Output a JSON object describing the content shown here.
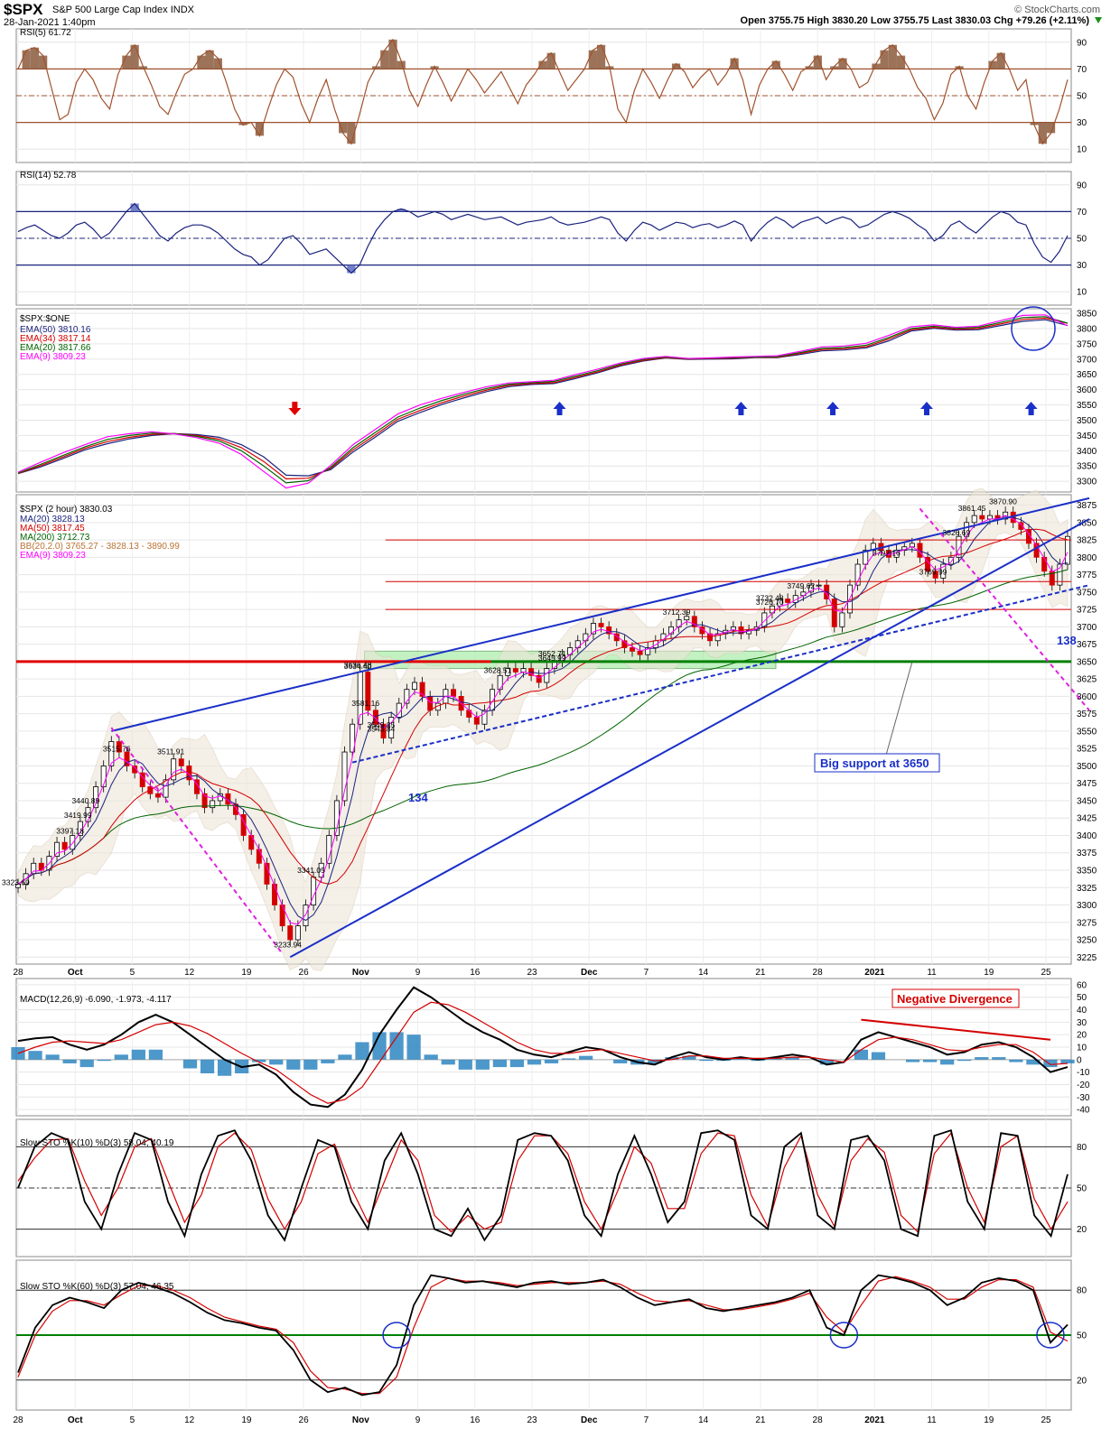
{
  "header": {
    "symbol": "$SPX",
    "name": "S&P 500 Large Cap Index",
    "exchange": "INDX",
    "date": "28-Jan-2021 1:40pm",
    "watermark": "© StockCharts.com",
    "quote": "Open 3755.75  High 3830.20  Low 3755.75  Last 3830.03  Chg +79.26 (+2.11%)"
  },
  "x_labels": [
    "28",
    "Oct",
    "5",
    "12",
    "19",
    "26",
    "Nov",
    "9",
    "16",
    "23",
    "Dec",
    "7",
    "14",
    "21",
    "28",
    "2021",
    "11",
    "19",
    "25"
  ],
  "chart_data": [
    {
      "id": "rsi5",
      "type": "line",
      "label": "RSI(5) 61.72",
      "ylim": [
        0,
        100
      ],
      "yticks": [
        10,
        30,
        50,
        70,
        90
      ],
      "levels": [
        30,
        50,
        70
      ],
      "colors": {
        "line": "#a0522d",
        "fill": "#8b5a3c"
      },
      "values": [
        70,
        84,
        86,
        80,
        56,
        32,
        36,
        60,
        70,
        62,
        48,
        40,
        66,
        80,
        88,
        72,
        58,
        42,
        36,
        52,
        66,
        70,
        80,
        84,
        78,
        60,
        40,
        28,
        30,
        20,
        40,
        58,
        70,
        64,
        44,
        30,
        48,
        62,
        40,
        22,
        14,
        36,
        60,
        72,
        84,
        92,
        76,
        54,
        42,
        58,
        72,
        60,
        46,
        58,
        70,
        62,
        52,
        60,
        68,
        56,
        44,
        58,
        66,
        76,
        82,
        68,
        54,
        62,
        70,
        84,
        88,
        72,
        40,
        30,
        54,
        70,
        60,
        48,
        62,
        74,
        68,
        56,
        64,
        70,
        58,
        66,
        78,
        62,
        36,
        58,
        70,
        76,
        66,
        54,
        68,
        72,
        80,
        62,
        72,
        78,
        70,
        56,
        60,
        74,
        84,
        88,
        80,
        70,
        56,
        48,
        32,
        44,
        66,
        72,
        50,
        40,
        60,
        76,
        82,
        70,
        54,
        62,
        28,
        14,
        22,
        40,
        62
      ]
    },
    {
      "id": "rsi14",
      "type": "line",
      "label": "RSI(14) 52.78",
      "ylim": [
        0,
        100
      ],
      "yticks": [
        10,
        30,
        50,
        70,
        90
      ],
      "levels": [
        30,
        50,
        70
      ],
      "colors": {
        "line": "#1a237e",
        "fill": "#5c6bc0"
      },
      "values": [
        55,
        58,
        60,
        56,
        52,
        50,
        54,
        60,
        62,
        57,
        50,
        54,
        62,
        70,
        76,
        68,
        60,
        52,
        48,
        54,
        58,
        60,
        60,
        58,
        54,
        48,
        42,
        38,
        36,
        30,
        34,
        42,
        50,
        52,
        46,
        38,
        40,
        42,
        36,
        30,
        24,
        30,
        44,
        56,
        64,
        70,
        72,
        70,
        66,
        68,
        70,
        68,
        64,
        66,
        68,
        66,
        64,
        65,
        66,
        63,
        60,
        62,
        63,
        64,
        66,
        62,
        60,
        61,
        62,
        64,
        66,
        64,
        54,
        48,
        56,
        62,
        60,
        56,
        59,
        62,
        61,
        58,
        60,
        61,
        58,
        60,
        63,
        60,
        48,
        56,
        62,
        66,
        63,
        58,
        62,
        64,
        66,
        61,
        64,
        66,
        64,
        58,
        60,
        64,
        68,
        70,
        68,
        65,
        60,
        56,
        48,
        52,
        60,
        63,
        58,
        54,
        60,
        66,
        70,
        68,
        62,
        60,
        46,
        36,
        32,
        40,
        52
      ]
    },
    {
      "id": "ema",
      "type": "line",
      "label": "$SPX:$ONE",
      "ylim": [
        3265,
        3865
      ],
      "yticks": [
        3300,
        3350,
        3400,
        3450,
        3500,
        3550,
        3600,
        3650,
        3700,
        3750,
        3800,
        3850
      ],
      "series": [
        {
          "name": "EMA(50) 3810.16",
          "color": "#1a237e",
          "values": [
            3325,
            3347,
            3374,
            3403,
            3423,
            3439,
            3450,
            3456,
            3453,
            3444,
            3420,
            3380,
            3320,
            3318,
            3338,
            3396,
            3445,
            3496,
            3525,
            3552,
            3574,
            3594,
            3610,
            3617,
            3620,
            3637,
            3656,
            3678,
            3694,
            3704,
            3699,
            3700,
            3701,
            3705,
            3705,
            3715,
            3727,
            3730,
            3737,
            3760,
            3792,
            3801,
            3795,
            3796,
            3810,
            3824,
            3829,
            3810
          ]
        },
        {
          "name": "EMA(34) 3817.14",
          "color": "#d40000",
          "values": [
            3326,
            3351,
            3379,
            3408,
            3430,
            3444,
            3454,
            3456,
            3450,
            3438,
            3410,
            3365,
            3308,
            3310,
            3342,
            3403,
            3452,
            3503,
            3532,
            3558,
            3580,
            3599,
            3614,
            3620,
            3623,
            3641,
            3659,
            3681,
            3696,
            3705,
            3700,
            3702,
            3703,
            3706,
            3706,
            3718,
            3731,
            3734,
            3741,
            3766,
            3796,
            3804,
            3798,
            3800,
            3815,
            3830,
            3834,
            3817
          ]
        },
        {
          "name": "EMA(20) 3817.66",
          "color": "#006400",
          "values": [
            3327,
            3355,
            3384,
            3413,
            3437,
            3450,
            3458,
            3456,
            3447,
            3432,
            3400,
            3350,
            3295,
            3302,
            3346,
            3410,
            3460,
            3510,
            3540,
            3565,
            3586,
            3604,
            3618,
            3623,
            3627,
            3645,
            3663,
            3684,
            3699,
            3707,
            3701,
            3703,
            3705,
            3707,
            3708,
            3721,
            3735,
            3738,
            3746,
            3771,
            3800,
            3808,
            3801,
            3804,
            3820,
            3836,
            3839,
            3818
          ]
        },
        {
          "name": "EMA(9) 3809.23",
          "color": "#ff00ff",
          "values": [
            3330,
            3362,
            3393,
            3420,
            3446,
            3456,
            3462,
            3455,
            3443,
            3425,
            3388,
            3332,
            3278,
            3294,
            3352,
            3420,
            3470,
            3520,
            3550,
            3572,
            3592,
            3610,
            3622,
            3626,
            3631,
            3650,
            3668,
            3688,
            3702,
            3709,
            3702,
            3704,
            3707,
            3709,
            3711,
            3725,
            3740,
            3743,
            3752,
            3778,
            3806,
            3812,
            3804,
            3808,
            3826,
            3843,
            3845,
            3809
          ]
        }
      ],
      "arrows_up_x": [
        0.515,
        0.687,
        0.774,
        0.863,
        0.962
      ],
      "arrow_down_x": 0.264
    },
    {
      "id": "price",
      "type": "candlestick",
      "label": "$SPX (2 hour) 3830.03",
      "ylim": [
        3215,
        3890
      ],
      "yticks": [
        3225,
        3250,
        3275,
        3300,
        3325,
        3350,
        3375,
        3400,
        3425,
        3450,
        3475,
        3500,
        3525,
        3550,
        3575,
        3600,
        3625,
        3650,
        3675,
        3700,
        3725,
        3750,
        3775,
        3800,
        3825,
        3850,
        3875
      ],
      "legend": [
        {
          "text": "MA(20) 3828.13",
          "color": "#1a237e"
        },
        {
          "text": "MA(50) 3817.45",
          "color": "#d40000"
        },
        {
          "text": "MA(200) 3712.73",
          "color": "#006400"
        },
        {
          "text": "BB(20,2.0) 3765.27 - 3828.13 - 3890.99",
          "color": "#b87333"
        },
        {
          "text": "EMA(9) 3809.23",
          "color": "#ff00ff"
        }
      ],
      "closes": [
        3330,
        3345,
        3360,
        3350,
        3370,
        3390,
        3380,
        3400,
        3420,
        3440,
        3470,
        3500,
        3535,
        3520,
        3500,
        3490,
        3470,
        3460,
        3455,
        3480,
        3510,
        3500,
        3480,
        3460,
        3440,
        3450,
        3460,
        3445,
        3430,
        3400,
        3380,
        3360,
        3330,
        3300,
        3270,
        3250,
        3270,
        3300,
        3340,
        3360,
        3400,
        3450,
        3520,
        3560,
        3635,
        3580,
        3560,
        3540,
        3570,
        3590,
        3610,
        3620,
        3600,
        3580,
        3590,
        3610,
        3600,
        3580,
        3570,
        3560,
        3580,
        3610,
        3630,
        3640,
        3635,
        3640,
        3630,
        3620,
        3640,
        3650,
        3660,
        3670,
        3680,
        3690,
        3705,
        3700,
        3690,
        3680,
        3670,
        3665,
        3660,
        3670,
        3680,
        3690,
        3700,
        3710,
        3715,
        3700,
        3690,
        3680,
        3690,
        3695,
        3700,
        3690,
        3695,
        3700,
        3720,
        3730,
        3740,
        3735,
        3745,
        3750,
        3760,
        3760,
        3740,
        3700,
        3720,
        3760,
        3790,
        3810,
        3820,
        3810,
        3800,
        3810,
        3815,
        3820,
        3800,
        3780,
        3770,
        3790,
        3800,
        3830,
        3850,
        3860,
        3855,
        3860,
        3855,
        3865,
        3850,
        3840,
        3820,
        3800,
        3780,
        3760,
        3790,
        3830
      ],
      "annotations": [
        "3397.18",
        "3323.69",
        "3549.85",
        "3515.76",
        "3440.89",
        "3419.99",
        "3341.05",
        "3233.94",
        "3645.99",
        "3581.16",
        "3511.91",
        "3628.51",
        "3543.84",
        "3712.39",
        "3634.40",
        "3726.70",
        "3636.48",
        "3769.99",
        "3652.71",
        "3826.69",
        "3861.45",
        "3870.90",
        "3797.16",
        "3749.62",
        "3732.48"
      ],
      "notes": {
        "support": "Big support at 3650",
        "count1": "134",
        "count2": "138"
      }
    },
    {
      "id": "macd",
      "type": "line",
      "label": "MACD(12,26,9) -6.090, -1.973, -4.117",
      "ylim": [
        -45,
        65
      ],
      "yticks": [
        -40,
        -30,
        -20,
        -10,
        0,
        10,
        20,
        30,
        40,
        50,
        60
      ],
      "series": [
        {
          "name": "MACD",
          "color": "#000000",
          "values": [
            15,
            17,
            18,
            12,
            8,
            12,
            20,
            30,
            36,
            30,
            20,
            10,
            0,
            -6,
            -4,
            -12,
            -26,
            -36,
            -38,
            -28,
            -8,
            20,
            40,
            58,
            50,
            40,
            30,
            22,
            16,
            8,
            4,
            2,
            6,
            10,
            8,
            2,
            -2,
            -4,
            2,
            6,
            2,
            0,
            2,
            0,
            2,
            4,
            2,
            -4,
            -2,
            16,
            22,
            18,
            14,
            10,
            4,
            6,
            12,
            14,
            10,
            2,
            -10,
            -6
          ]
        },
        {
          "name": "Signal",
          "color": "#d40000",
          "values": [
            5,
            10,
            14,
            15,
            14,
            13,
            16,
            22,
            28,
            30,
            27,
            21,
            13,
            5,
            -2,
            -8,
            -18,
            -28,
            -35,
            -32,
            -22,
            -2,
            18,
            38,
            46,
            44,
            38,
            30,
            22,
            14,
            8,
            5,
            5,
            7,
            8,
            5,
            2,
            -1,
            0,
            3,
            3,
            1,
            1,
            1,
            1,
            2,
            2,
            0,
            -2,
            8,
            16,
            18,
            16,
            12,
            8,
            7,
            10,
            12,
            12,
            6,
            -4,
            -3
          ]
        }
      ],
      "divergence_note": "Negative Divergence"
    },
    {
      "id": "sto10",
      "type": "line",
      "label": "Slow STO %K(10) %D(3) 58.04, 40.19",
      "ylim": [
        0,
        100
      ],
      "yticks": [
        20,
        50,
        80
      ],
      "levels": [
        20,
        50,
        80
      ],
      "series": [
        {
          "name": "%K",
          "color": "#000000",
          "values": [
            50,
            80,
            90,
            85,
            40,
            20,
            60,
            90,
            85,
            40,
            15,
            60,
            88,
            92,
            70,
            30,
            12,
            50,
            85,
            80,
            40,
            20,
            70,
            90,
            60,
            20,
            15,
            35,
            12,
            30,
            85,
            90,
            88,
            70,
            30,
            15,
            60,
            88,
            60,
            25,
            40,
            90,
            92,
            85,
            30,
            20,
            80,
            90,
            30,
            20,
            85,
            88,
            70,
            20,
            15,
            88,
            92,
            40,
            20,
            90,
            88,
            30,
            15,
            60
          ]
        },
        {
          "name": "%D",
          "color": "#d40000",
          "values": [
            55,
            72,
            85,
            86,
            55,
            30,
            50,
            80,
            86,
            55,
            25,
            45,
            80,
            90,
            78,
            42,
            20,
            40,
            75,
            82,
            50,
            25,
            55,
            85,
            70,
            30,
            18,
            30,
            20,
            25,
            70,
            88,
            88,
            75,
            40,
            20,
            48,
            80,
            68,
            35,
            35,
            75,
            90,
            88,
            45,
            22,
            65,
            88,
            45,
            22,
            70,
            86,
            76,
            30,
            18,
            75,
            90,
            50,
            25,
            80,
            88,
            42,
            20,
            40
          ]
        }
      ]
    },
    {
      "id": "sto60",
      "type": "line",
      "label": "Slow STO %K(60) %D(3) 57.04, 46.35",
      "ylim": [
        0,
        100
      ],
      "yticks": [
        20,
        50,
        80
      ],
      "levels": [
        20,
        50,
        80
      ],
      "series": [
        {
          "name": "%K",
          "color": "#000000",
          "values": [
            25,
            55,
            70,
            75,
            72,
            68,
            80,
            85,
            82,
            78,
            72,
            65,
            60,
            58,
            55,
            53,
            40,
            20,
            12,
            15,
            10,
            12,
            30,
            70,
            90,
            88,
            85,
            86,
            84,
            82,
            85,
            86,
            84,
            85,
            87,
            82,
            75,
            70,
            72,
            74,
            68,
            66,
            68,
            70,
            72,
            75,
            80,
            55,
            50,
            80,
            90,
            88,
            85,
            80,
            70,
            75,
            85,
            88,
            86,
            80,
            45,
            57
          ]
        },
        {
          "name": "%D",
          "color": "#d40000",
          "values": [
            22,
            50,
            66,
            73,
            73,
            70,
            77,
            83,
            83,
            80,
            75,
            68,
            62,
            59,
            56,
            54,
            45,
            26,
            15,
            14,
            11,
            11,
            22,
            55,
            82,
            88,
            86,
            86,
            85,
            83,
            84,
            85,
            85,
            85,
            86,
            84,
            78,
            73,
            72,
            73,
            70,
            67,
            67,
            69,
            71,
            74,
            78,
            62,
            52,
            70,
            86,
            89,
            86,
            82,
            74,
            74,
            82,
            87,
            87,
            82,
            52,
            46
          ]
        }
      ]
    }
  ]
}
